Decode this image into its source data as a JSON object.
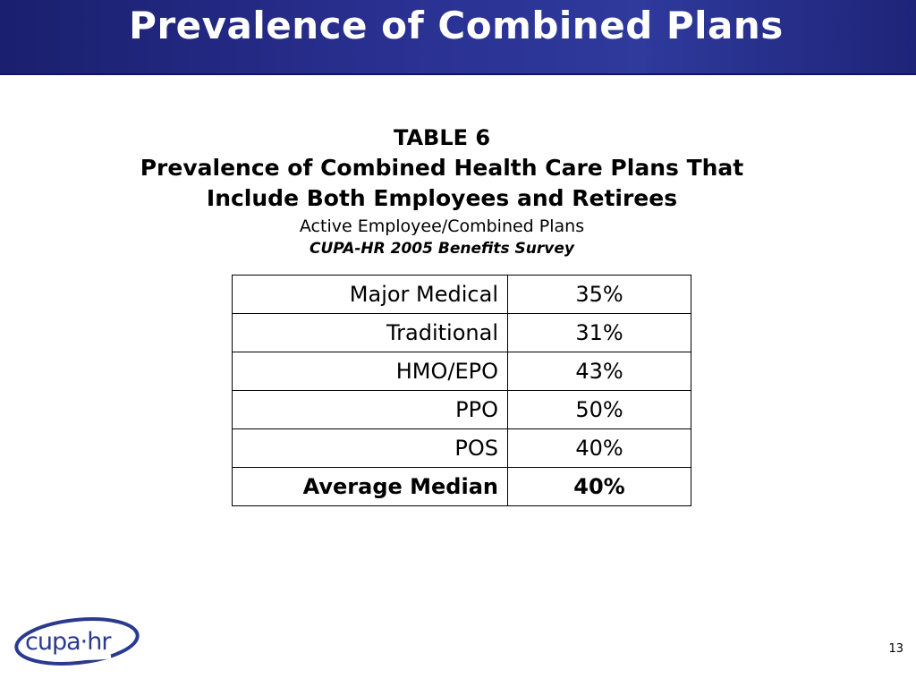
{
  "slide": {
    "title": "Prevalence of Combined Plans",
    "page_number": "13"
  },
  "table_heading": {
    "number": "TABLE 6",
    "title_line1": "Prevalence of Combined Health Care Plans That",
    "title_line2": "Include Both Employees and Retirees",
    "subtitle": "Active Employee/Combined Plans",
    "source": "CUPA-HR 2005 Benefits Survey"
  },
  "table": {
    "rows": [
      {
        "label": "Major Medical",
        "value": "35%"
      },
      {
        "label": "Traditional",
        "value": "31%"
      },
      {
        "label": "HMO/EPO",
        "value": "43%"
      },
      {
        "label": "PPO",
        "value": "50%"
      },
      {
        "label": "POS",
        "value": "40%"
      }
    ],
    "summary": {
      "label": "Average Median",
      "value": "40%"
    }
  },
  "logo": {
    "text": "cupa·hr",
    "color": "#2b3a8f"
  }
}
